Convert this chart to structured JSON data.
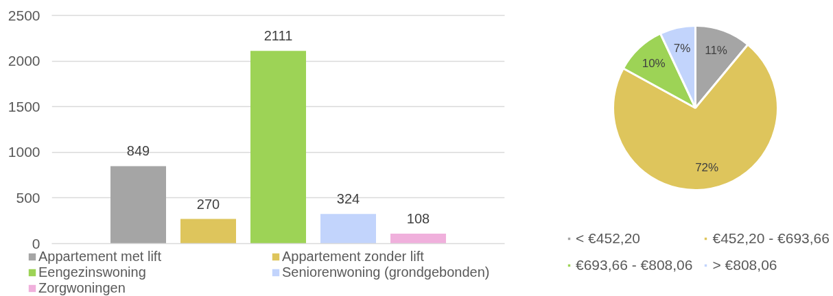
{
  "chart_data": [
    {
      "type": "bar",
      "categories": [
        null
      ],
      "series": [
        {
          "name": "Appartement met lift",
          "color": "#a5a5a5",
          "values": [
            849
          ]
        },
        {
          "name": "Appartement zonder lift",
          "color": "#dec55c",
          "values": [
            270
          ]
        },
        {
          "name": "Eengezinswoning",
          "color": "#9dd356",
          "values": [
            2111
          ]
        },
        {
          "name": "Seniorenwoning (grondgebonden)",
          "color": "#c2d4fc",
          "values": [
            324
          ]
        },
        {
          "name": "Zorgwoningen",
          "color": "#f0b0dc",
          "values": [
            108
          ]
        }
      ],
      "ylim": [
        0,
        2500
      ],
      "yticks": [
        0,
        500,
        1000,
        1500,
        2000,
        2500
      ],
      "grid": "y",
      "legend": "bottom",
      "data_labels": true
    },
    {
      "type": "pie",
      "categories": [
        "< €452,20",
        "€452,20 - €693,66",
        "€693,66 - €808,06",
        "> €808,06"
      ],
      "values": [
        11,
        72,
        10,
        7
      ],
      "colors": [
        "#a5a5a5",
        "#dec55c",
        "#9dd356",
        "#c2d4fc"
      ],
      "value_labels": [
        "11%",
        "72%",
        "10%",
        "7%"
      ],
      "legend": "bottom"
    }
  ]
}
